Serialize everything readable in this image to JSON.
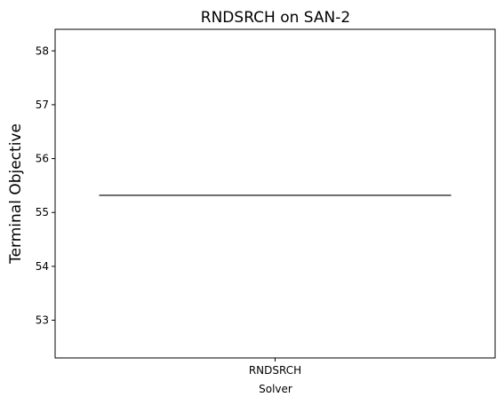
{
  "chart_data": {
    "type": "box",
    "title": "RNDSRCH on SAN-2",
    "xlabel": "Solver",
    "ylabel": "Terminal Objective",
    "categories": [
      "RNDSRCH"
    ],
    "series": [
      {
        "values": [
          55.32
        ]
      }
    ],
    "ylim": [
      52.3,
      58.4
    ],
    "yticks": [
      53,
      54,
      55,
      56,
      57,
      58
    ],
    "grid": false,
    "legend": "none",
    "colors": {
      "line": "#3d3d3d",
      "axes": "#000000",
      "background": "#ffffff"
    }
  }
}
